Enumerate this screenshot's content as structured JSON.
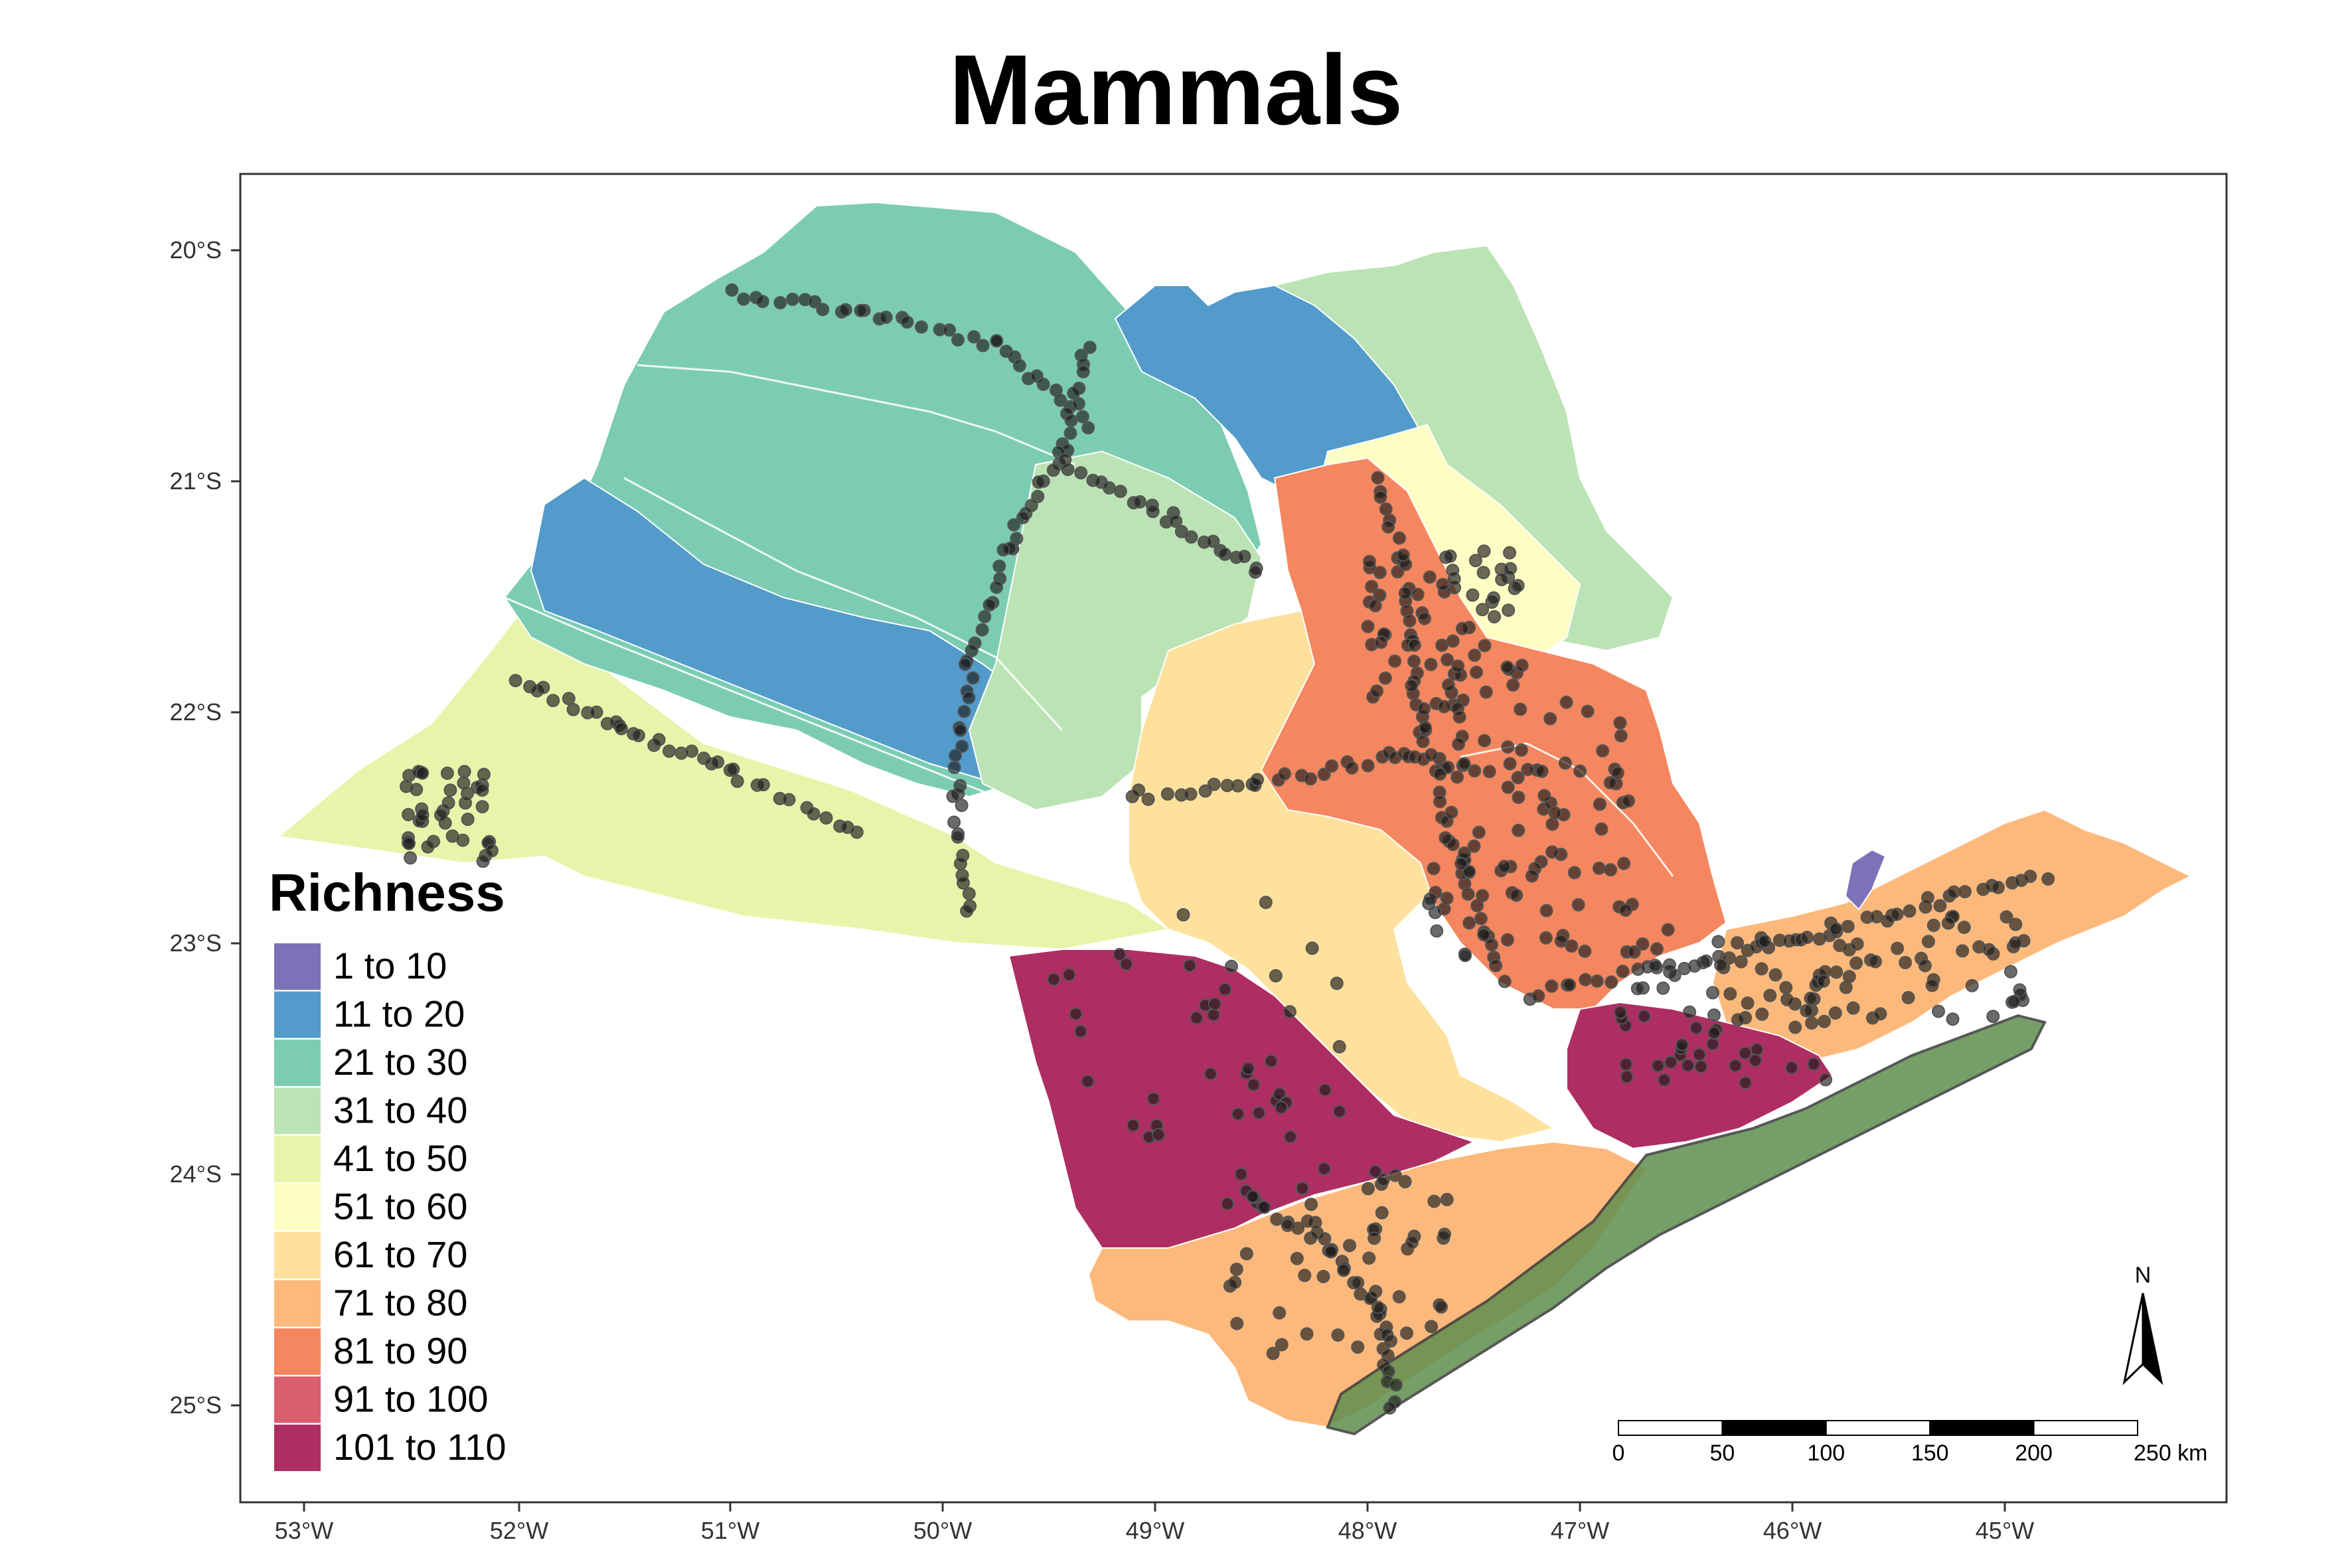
{
  "title": "Mammals",
  "axes": {
    "x_ticks": [
      "53°W",
      "52°W",
      "51°W",
      "50°W",
      "49°W",
      "48°W",
      "47°W",
      "46°W",
      "45°W"
    ],
    "y_ticks": [
      "20°S",
      "21°S",
      "22°S",
      "23°S",
      "24°S",
      "25°S"
    ]
  },
  "legend": {
    "title": "Richness",
    "items": [
      {
        "label": "1 to 10",
        "color": "#7B72B8"
      },
      {
        "label": "11 to 20",
        "color": "#529BCA"
      },
      {
        "label": "21 to 30",
        "color": "#7CCCB4"
      },
      {
        "label": "31 to 40",
        "color": "#BCE3B5"
      },
      {
        "label": "41 to 50",
        "color": "#E6F5AA"
      },
      {
        "label": "51 to 60",
        "color": "#FEFDC3"
      },
      {
        "label": "61 to 70",
        "color": "#FEE19C"
      },
      {
        "label": "71 to 80",
        "color": "#FDB97B"
      },
      {
        "label": "81 to 90",
        "color": "#F4875F"
      },
      {
        "label": "91 to 100",
        "color": "#DA5E6E"
      },
      {
        "label": "101 to 110",
        "color": "#AE2E63"
      }
    ]
  },
  "north_arrow": {
    "label": "N"
  },
  "scale_bar": {
    "labels": [
      "0",
      "50",
      "100",
      "150",
      "200",
      "250 km"
    ]
  },
  "colors": {
    "forest": "#4E8C2E",
    "protected_area": "#5F8F4E",
    "points": "#1A1A1A"
  }
}
